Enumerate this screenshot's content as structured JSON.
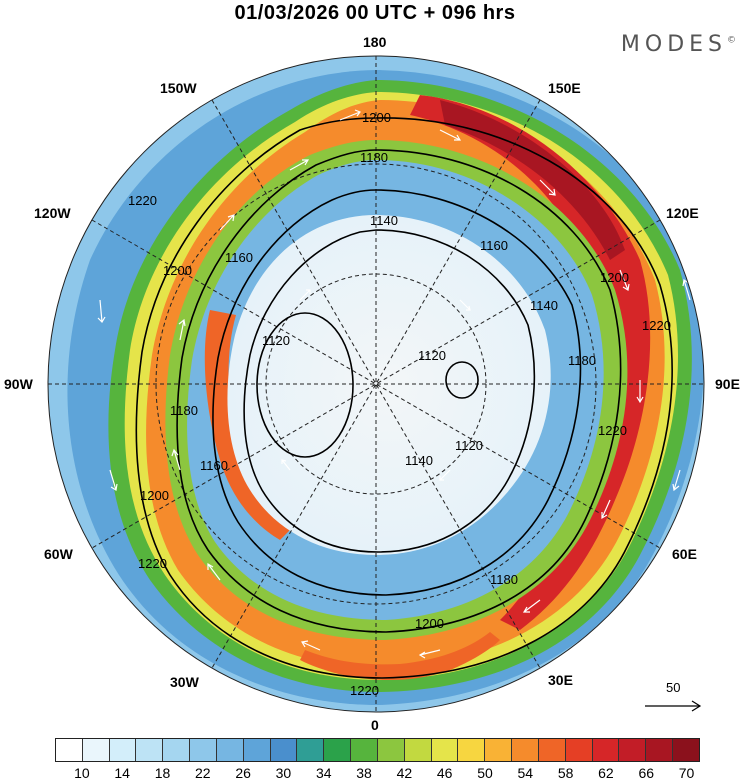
{
  "header": {
    "title": "01/03/2026  00 UTC  + 096 hrs",
    "brand": "MODES",
    "brand_mark": "©"
  },
  "map": {
    "projection": "north polar stereographic",
    "longitude_labels": {
      "lon_180": "180",
      "lon_150e": "150E",
      "lon_120e": "120E",
      "lon_90e": "90E",
      "lon_60e": "60E",
      "lon_30e": "30E",
      "lon_0": "0",
      "lon_30w": "30W",
      "lon_60w": "60W",
      "lon_90w": "90W",
      "lon_120w": "120W",
      "lon_150w": "150W"
    },
    "field": "wind speed (shaded) + geopotential height contours + wind vectors",
    "contour_labels": [
      "1220",
      "1200",
      "1180",
      "1160",
      "1140",
      "1120"
    ],
    "reference_vector": {
      "label": "50"
    }
  },
  "colorbar": {
    "tick_labels": [
      "10",
      "14",
      "18",
      "22",
      "26",
      "30",
      "34",
      "38",
      "42",
      "46",
      "50",
      "54",
      "58",
      "62",
      "66",
      "70"
    ],
    "colors": [
      "#ffffff",
      "#eaf6fc",
      "#d3eefa",
      "#bde3f5",
      "#a5d6f0",
      "#8ec7ea",
      "#76b6e2",
      "#5ea4d9",
      "#4a8fcd",
      "#2f9e95",
      "#2ba24a",
      "#56b43d",
      "#8cc63f",
      "#c2d940",
      "#e5e44a",
      "#f7d640",
      "#f9b235",
      "#f58b2c",
      "#ef6527",
      "#e53f25",
      "#d62628",
      "#c21d27",
      "#a81622",
      "#8b111c"
    ]
  }
}
